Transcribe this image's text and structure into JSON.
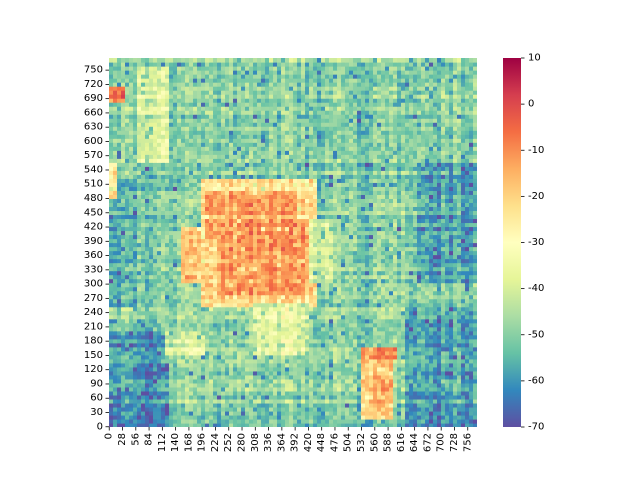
{
  "chart_data": {
    "type": "heatmap",
    "title": "",
    "xlabel": "",
    "ylabel": "",
    "x_ticks": [
      0,
      28,
      56,
      84,
      112,
      140,
      168,
      196,
      224,
      252,
      280,
      308,
      336,
      364,
      392,
      420,
      448,
      476,
      504,
      532,
      560,
      588,
      616,
      644,
      672,
      700,
      728,
      756
    ],
    "y_ticks": [
      0,
      30,
      60,
      90,
      120,
      150,
      180,
      210,
      240,
      270,
      300,
      330,
      360,
      390,
      420,
      450,
      480,
      510,
      540,
      570,
      600,
      630,
      660,
      690,
      720,
      750
    ],
    "x_range": [
      0,
      776
    ],
    "y_range": [
      0,
      776
    ],
    "y_direction": "bottom-to-top",
    "colorbar": {
      "min": -70,
      "max": 10,
      "ticks": [
        10,
        0,
        -10,
        -20,
        -30,
        -40,
        -50,
        -60,
        -70
      ],
      "colormap": "Spectral",
      "colors": [
        "#5e4fa2",
        "#3288bd",
        "#66c2a5",
        "#abdda4",
        "#e6f598",
        "#ffffbf",
        "#fee08b",
        "#fdae61",
        "#f46d43",
        "#d53e4f",
        "#9e0142"
      ]
    },
    "regions": [
      {
        "x": [
          0,
          776
        ],
        "y": [
          0,
          776
        ],
        "value": -50
      },
      {
        "x": [
          0,
          130
        ],
        "y": [
          0,
          200
        ],
        "value": -60
      },
      {
        "x": [
          620,
          776
        ],
        "y": [
          0,
          250
        ],
        "value": -58
      },
      {
        "x": [
          0,
          60
        ],
        "y": [
          250,
          520
        ],
        "value": -57
      },
      {
        "x": [
          650,
          776
        ],
        "y": [
          300,
          560
        ],
        "value": -58
      },
      {
        "x": [
          0,
          776
        ],
        "y": [
          620,
          776
        ],
        "value": -49
      },
      {
        "x": [
          190,
          440
        ],
        "y": [
          250,
          520
        ],
        "value": -22
      },
      {
        "x": [
          200,
          400
        ],
        "y": [
          400,
          500
        ],
        "value": -14
      },
      {
        "x": [
          230,
          420
        ],
        "y": [
          280,
          420
        ],
        "value": -13
      },
      {
        "x": [
          420,
          470
        ],
        "y": [
          300,
          440
        ],
        "value": -40
      },
      {
        "x": [
          280,
          420
        ],
        "y": [
          380,
          440
        ],
        "value": -11
      },
      {
        "x": [
          530,
          600
        ],
        "y": [
          20,
          170
        ],
        "value": -18
      },
      {
        "x": [
          530,
          610
        ],
        "y": [
          140,
          170
        ],
        "value": -12
      },
      {
        "x": [
          0,
          30
        ],
        "y": [
          680,
          720
        ],
        "value": -8
      },
      {
        "x": [
          0,
          20
        ],
        "y": [
          480,
          560
        ],
        "value": -22
      },
      {
        "x": [
          150,
          190
        ],
        "y": [
          300,
          420
        ],
        "value": -20
      },
      {
        "x": [
          120,
          200
        ],
        "y": [
          150,
          200
        ],
        "value": -40
      },
      {
        "x": [
          300,
          420
        ],
        "y": [
          150,
          260
        ],
        "value": -38
      },
      {
        "x": [
          60,
          130
        ],
        "y": [
          560,
          760
        ],
        "value": -37
      }
    ]
  }
}
